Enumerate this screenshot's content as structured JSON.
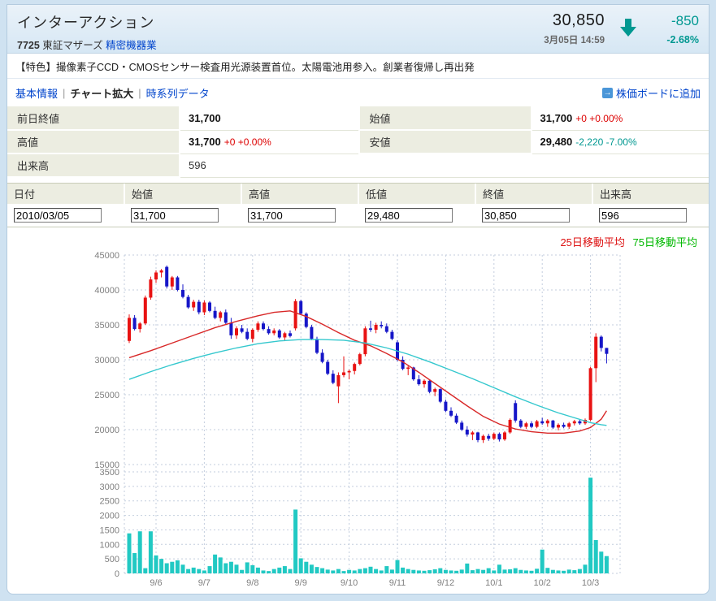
{
  "header": {
    "title": "インターアクション",
    "code": "7725",
    "market": "東証マザーズ",
    "industry": "精密機器業",
    "price": "30,850",
    "datetime": "3月05日 14:59",
    "change": "-850",
    "change_pct": "-2.68%",
    "change_color": "#009891",
    "arrow_icon": "down-arrow"
  },
  "feature_line": "【特色】撮像素子CCD・CMOSセンサー検査用光源装置首位。太陽電池用参入。創業者復帰し再出発",
  "nav": {
    "tabs": [
      {
        "label": "基本情報",
        "active": false
      },
      {
        "label": "チャート拡大",
        "active": true
      },
      {
        "label": "時系列データ",
        "active": false
      }
    ],
    "separator": "|",
    "board_link": "株価ボードに追加",
    "board_icon": "arrow-right-square-icon"
  },
  "summary": {
    "prev_close": {
      "label": "前日終値",
      "value": "31,700"
    },
    "open": {
      "label": "始値",
      "value": "31,700",
      "change": "+0 +0.00%"
    },
    "high": {
      "label": "高値",
      "value": "31,700",
      "change": "+0 +0.00%"
    },
    "low": {
      "label": "安値",
      "value": "29,480",
      "change": "-2,220 -7.00%"
    },
    "volume": {
      "label": "出来高",
      "value": "596"
    }
  },
  "quote_row": {
    "columns": [
      {
        "label": "日付",
        "value": "2010/03/05"
      },
      {
        "label": "始値",
        "value": "31,700"
      },
      {
        "label": "高値",
        "value": "31,700"
      },
      {
        "label": "低値",
        "value": "29,480"
      },
      {
        "label": "終値",
        "value": "30,850"
      },
      {
        "label": "出来高",
        "value": "596"
      }
    ]
  },
  "chart_data": {
    "type": "candlestick+volume",
    "legend": [
      {
        "label": "25日移動平均",
        "color": "#dd1111"
      },
      {
        "label": "75日移動平均",
        "color": "#00b800"
      }
    ],
    "colors": {
      "up": "#e81212",
      "down": "#1616c8",
      "volume": "#21c9c3",
      "ma25_line": "#d82828",
      "ma75_line": "#35c8ce",
      "grid": "#c3cede",
      "axis_text": "#808080"
    },
    "price_axis": {
      "min": 15000,
      "max": 45000,
      "ticks": [
        45000,
        40000,
        35000,
        30000,
        25000,
        20000,
        15000
      ]
    },
    "volume_axis": {
      "max": 3500,
      "ticks": [
        3500,
        3000,
        2500,
        2000,
        1500,
        1000,
        500,
        0
      ]
    },
    "x_axis": {
      "labels": [
        {
          "i": 5,
          "label": "9/6"
        },
        {
          "i": 14,
          "label": "9/7"
        },
        {
          "i": 23,
          "label": "9/8"
        },
        {
          "i": 32,
          "label": "9/9"
        },
        {
          "i": 41,
          "label": "9/10"
        },
        {
          "i": 50,
          "label": "9/11"
        },
        {
          "i": 59,
          "label": "9/12"
        },
        {
          "i": 68,
          "label": "10/1"
        },
        {
          "i": 77,
          "label": "10/2"
        },
        {
          "i": 86,
          "label": "10/3"
        }
      ]
    },
    "candles": [
      [
        32700,
        36500,
        32400,
        36000,
        1380
      ],
      [
        36000,
        36400,
        34200,
        34400,
        700
      ],
      [
        34400,
        35400,
        33900,
        35200,
        1450
      ],
      [
        35200,
        39200,
        35000,
        38900,
        180
      ],
      [
        38900,
        41900,
        38600,
        41500,
        1450
      ],
      [
        41500,
        42800,
        41000,
        42500,
        620
      ],
      [
        42500,
        43000,
        41800,
        42800,
        500
      ],
      [
        43300,
        43500,
        40200,
        40500,
        350
      ],
      [
        40500,
        42000,
        40000,
        41800,
        400
      ],
      [
        41800,
        42000,
        39800,
        40000,
        450
      ],
      [
        40000,
        40800,
        38800,
        39000,
        300
      ],
      [
        39000,
        39300,
        37300,
        37500,
        150
      ],
      [
        37500,
        38600,
        37000,
        38300,
        200
      ],
      [
        38300,
        38600,
        36500,
        36800,
        150
      ],
      [
        36800,
        38500,
        36400,
        38200,
        100
      ],
      [
        38200,
        38400,
        36800,
        37000,
        250
      ],
      [
        37000,
        37600,
        35800,
        36000,
        650
      ],
      [
        36000,
        37000,
        35500,
        36800,
        550
      ],
      [
        36800,
        37200,
        35000,
        35300,
        350
      ],
      [
        35300,
        36000,
        33000,
        33500,
        400
      ],
      [
        33500,
        34800,
        33000,
        34500,
        300
      ],
      [
        34500,
        35000,
        33800,
        34000,
        120
      ],
      [
        34000,
        34500,
        32800,
        33000,
        380
      ],
      [
        33000,
        34500,
        32500,
        34300,
        280
      ],
      [
        34300,
        35500,
        34000,
        35200,
        200
      ],
      [
        35200,
        35500,
        34200,
        34400,
        100
      ],
      [
        34400,
        34800,
        33600,
        33800,
        80
      ],
      [
        33800,
        34500,
        33500,
        34200,
        150
      ],
      [
        34200,
        34400,
        33000,
        33200,
        200
      ],
      [
        33200,
        34000,
        32800,
        33800,
        250
      ],
      [
        33800,
        34200,
        33200,
        33400,
        150
      ],
      [
        34500,
        38700,
        34200,
        38400,
        2200
      ],
      [
        38400,
        38600,
        36400,
        36600,
        520
      ],
      [
        36600,
        36800,
        34500,
        34700,
        400
      ],
      [
        34700,
        35000,
        32800,
        33000,
        300
      ],
      [
        33000,
        33300,
        30800,
        31000,
        220
      ],
      [
        31000,
        31500,
        29500,
        29700,
        180
      ],
      [
        29700,
        30000,
        27800,
        28000,
        130
      ],
      [
        28000,
        28500,
        26500,
        26700,
        100
      ],
      [
        26200,
        28200,
        23800,
        27800,
        150
      ],
      [
        27800,
        30500,
        27500,
        28200,
        80
      ],
      [
        28200,
        28600,
        27200,
        28400,
        120
      ],
      [
        28400,
        29600,
        27900,
        29400,
        100
      ],
      [
        29400,
        31000,
        29200,
        30800,
        150
      ],
      [
        30800,
        34800,
        30500,
        34500,
        180
      ],
      [
        34500,
        35600,
        34000,
        34300,
        230
      ],
      [
        34300,
        35300,
        33800,
        35000,
        150
      ],
      [
        35000,
        35500,
        34500,
        34800,
        100
      ],
      [
        34800,
        35200,
        33800,
        34000,
        250
      ],
      [
        34000,
        34300,
        32800,
        33000,
        130
      ],
      [
        32500,
        32800,
        29800,
        30000,
        460
      ],
      [
        30000,
        30500,
        28500,
        28700,
        200
      ],
      [
        28700,
        29200,
        27800,
        28900,
        150
      ],
      [
        28900,
        29000,
        27000,
        27200,
        120
      ],
      [
        27200,
        27800,
        26300,
        26500,
        100
      ],
      [
        26500,
        27200,
        26000,
        27000,
        90
      ],
      [
        27000,
        27100,
        25200,
        25400,
        110
      ],
      [
        25400,
        26000,
        24800,
        25800,
        140
      ],
      [
        25800,
        25900,
        23800,
        24000,
        180
      ],
      [
        24000,
        24300,
        22500,
        22700,
        120
      ],
      [
        22700,
        23200,
        21800,
        22000,
        100
      ],
      [
        22000,
        22300,
        20800,
        21000,
        90
      ],
      [
        21000,
        21300,
        19800,
        20000,
        130
      ],
      [
        20000,
        20500,
        19000,
        19300,
        340
      ],
      [
        19300,
        19800,
        18500,
        19600,
        110
      ],
      [
        19600,
        19700,
        18200,
        18500,
        150
      ],
      [
        18500,
        19300,
        18100,
        19100,
        120
      ],
      [
        19100,
        19400,
        18400,
        18700,
        180
      ],
      [
        18700,
        19600,
        18500,
        19400,
        100
      ],
      [
        19400,
        19600,
        18300,
        18600,
        300
      ],
      [
        18600,
        19800,
        18400,
        19600,
        130
      ],
      [
        19600,
        21600,
        19400,
        21400,
        140
      ],
      [
        23800,
        24200,
        21000,
        21300,
        180
      ],
      [
        21300,
        21500,
        20200,
        20400,
        120
      ],
      [
        20400,
        21100,
        20100,
        20900,
        100
      ],
      [
        20900,
        21200,
        20200,
        20400,
        90
      ],
      [
        20400,
        21400,
        20200,
        21200,
        160
      ],
      [
        21200,
        21700,
        20700,
        20900,
        820
      ],
      [
        20900,
        21500,
        20400,
        21300,
        190
      ],
      [
        21300,
        21400,
        20100,
        20300,
        120
      ],
      [
        20300,
        20900,
        19900,
        20700,
        100
      ],
      [
        20700,
        21000,
        20200,
        20400,
        90
      ],
      [
        20400,
        21100,
        20100,
        20900,
        130
      ],
      [
        20900,
        21400,
        20600,
        21200,
        110
      ],
      [
        21200,
        21400,
        20700,
        20900,
        150
      ],
      [
        20900,
        21600,
        20700,
        21400,
        300
      ],
      [
        21400,
        29000,
        21200,
        28800,
        3300
      ],
      [
        28800,
        33800,
        26800,
        33300,
        1150
      ],
      [
        33300,
        33500,
        31200,
        31700,
        750
      ],
      [
        31700,
        31700,
        29480,
        30850,
        596
      ]
    ],
    "ma25_points": [
      [
        0,
        30300
      ],
      [
        4,
        31300
      ],
      [
        8,
        32400
      ],
      [
        12,
        33500
      ],
      [
        16,
        34600
      ],
      [
        20,
        35500
      ],
      [
        24,
        36300
      ],
      [
        27,
        36800
      ],
      [
        30,
        37000
      ],
      [
        33,
        36200
      ],
      [
        36,
        35100
      ],
      [
        39,
        33900
      ],
      [
        42,
        32800
      ],
      [
        45,
        32000
      ],
      [
        48,
        30900
      ],
      [
        51,
        29700
      ],
      [
        54,
        28200
      ],
      [
        57,
        26600
      ],
      [
        60,
        25000
      ],
      [
        63,
        23400
      ],
      [
        66,
        21900
      ],
      [
        69,
        20800
      ],
      [
        72,
        20100
      ],
      [
        75,
        19700
      ],
      [
        78,
        19500
      ],
      [
        81,
        19500
      ],
      [
        84,
        19800
      ],
      [
        86,
        20300
      ],
      [
        88,
        21500
      ],
      [
        89,
        22700
      ]
    ],
    "ma75_points": [
      [
        0,
        27200
      ],
      [
        4,
        28300
      ],
      [
        8,
        29300
      ],
      [
        12,
        30200
      ],
      [
        16,
        31000
      ],
      [
        20,
        31700
      ],
      [
        24,
        32300
      ],
      [
        28,
        32700
      ],
      [
        32,
        32900
      ],
      [
        36,
        32900
      ],
      [
        40,
        32800
      ],
      [
        44,
        32400
      ],
      [
        48,
        31700
      ],
      [
        52,
        30800
      ],
      [
        56,
        29700
      ],
      [
        60,
        28500
      ],
      [
        64,
        27300
      ],
      [
        68,
        26000
      ],
      [
        72,
        24700
      ],
      [
        76,
        23500
      ],
      [
        80,
        22400
      ],
      [
        83,
        21700
      ],
      [
        86,
        21000
      ],
      [
        88,
        20700
      ],
      [
        89,
        20600
      ]
    ]
  }
}
